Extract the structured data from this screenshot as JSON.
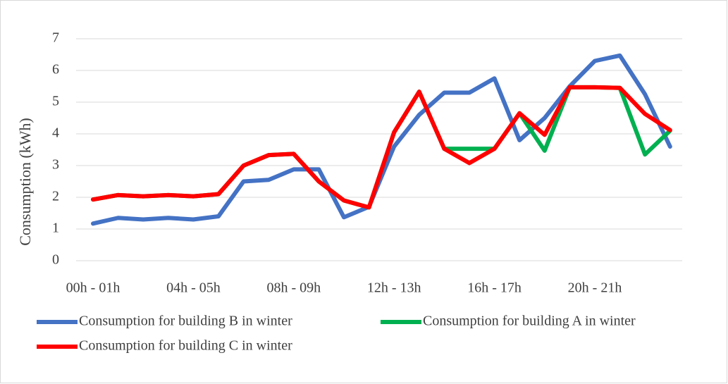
{
  "chart_data": {
    "type": "line",
    "y_label": "Consumption (kWh)",
    "categories": [
      "00h - 01h",
      null,
      null,
      null,
      "04h - 05h",
      null,
      null,
      null,
      "08h - 09h",
      null,
      null,
      null,
      "12h - 13h",
      null,
      null,
      null,
      "16h - 17h",
      null,
      null,
      null,
      "20h - 21h",
      null,
      null,
      null
    ],
    "series": [
      {
        "name": "Consumption for building B in winter",
        "color": "#4472c4",
        "values": [
          1.17,
          1.35,
          1.3,
          1.35,
          1.3,
          1.4,
          2.5,
          2.55,
          2.88,
          2.88,
          1.37,
          1.7,
          3.6,
          4.6,
          5.3,
          5.3,
          5.75,
          3.8,
          4.5,
          5.5,
          6.3,
          6.47,
          5.25,
          3.6
        ]
      },
      {
        "name": "Consumption for building A in winter",
        "color": "#00b050",
        "values": [
          1.93,
          2.07,
          2.03,
          2.07,
          2.03,
          2.1,
          3.0,
          3.33,
          3.37,
          2.5,
          1.9,
          1.68,
          4.05,
          5.33,
          3.53,
          3.53,
          3.53,
          4.65,
          3.47,
          5.47,
          5.47,
          5.45,
          3.35,
          4.1
        ]
      },
      {
        "name": "Consumption for building C in winter",
        "color": "#ff0000",
        "values": [
          1.93,
          2.07,
          2.03,
          2.07,
          2.03,
          2.1,
          3.0,
          3.33,
          3.37,
          2.5,
          1.9,
          1.68,
          4.05,
          5.33,
          3.53,
          3.08,
          3.53,
          4.65,
          3.97,
          5.47,
          5.47,
          5.45,
          4.63,
          4.12
        ]
      }
    ],
    "ylim": [
      0,
      7
    ],
    "yticks": [
      0,
      1,
      2,
      3,
      4,
      5,
      6,
      7
    ],
    "grid": true,
    "legend": "bottom"
  }
}
